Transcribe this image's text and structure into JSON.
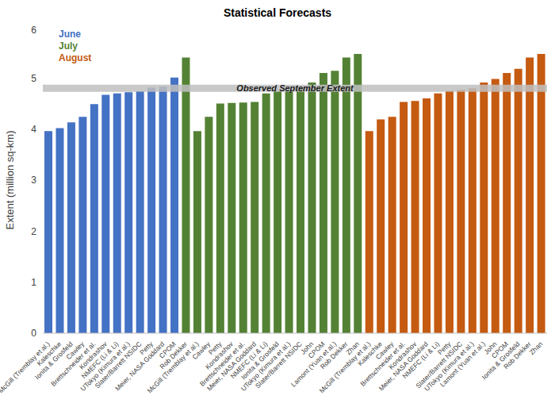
{
  "chart_data": {
    "type": "bar",
    "title": "Statistical Forecasts",
    "y_label": "Extent (million sq-km)",
    "categories": [
      "McGill (Tremblay et al.)",
      "Kaleschke",
      "Ionita & Grosfeld",
      "Cawley",
      "Brettschneider et al.",
      "Kondrashov",
      "NMEFC (Li & Li)",
      "UTokyo (Kimura et al.)",
      "Slater/Barrett NSIDC",
      "Petty",
      "Meier, NASA Goddard",
      "CPOM",
      "Rob Dekker",
      "McGill (Tremblay et al.)",
      "Cawley",
      "Petty",
      "Kondrashov",
      "Brettschneider et al.",
      "Meier, NASA Goddard",
      "NMEFC (Li & Li)",
      "Ionita & Grosfeld",
      "UTokyo (Kimura et al.)",
      "Slater/Barrett NSIDC",
      "John",
      "CPOM",
      "Lamont (Yuan et al.)",
      "Rob Dekker",
      "Zhan",
      "McGill (Tremblay et al.)",
      "Kaleschke",
      "Cawley",
      "Brettschneider et al.",
      "Kondrashov",
      "Meier, NASA Goddard",
      "NMEFC (Li & Li)",
      "Petty",
      "Slater/Barrett NSIDC",
      "UTokyo (Kimura et al.)",
      "Lamont (Yuan et al.)",
      "John",
      "CPOM",
      "Ionita & Grosfeld",
      "Rob Dekker",
      "Zhan"
    ],
    "series": [
      {
        "name": "June",
        "color": "#4472c4",
        "values": [
          3.96,
          4.02,
          4.13,
          4.24,
          4.49,
          4.67,
          4.7,
          4.72,
          4.74,
          4.81,
          4.83,
          5.01,
          null,
          null,
          null,
          null,
          null,
          null,
          null,
          null,
          null,
          null,
          null,
          null,
          null,
          null,
          null,
          null,
          null,
          null,
          null,
          null,
          null,
          null,
          null,
          null,
          null,
          null,
          null,
          null,
          null,
          null,
          null,
          null
        ]
      },
      {
        "name": "July",
        "color": "#548235",
        "values": [
          null,
          null,
          null,
          null,
          null,
          null,
          null,
          null,
          null,
          null,
          null,
          null,
          5.4,
          3.96,
          4.24,
          4.5,
          4.51,
          4.52,
          4.53,
          4.7,
          4.74,
          4.76,
          4.82,
          4.91,
          5.1,
          5.14,
          5.4,
          5.47,
          null,
          null,
          null,
          null,
          null,
          null,
          null,
          null,
          null,
          null,
          null,
          null,
          null,
          null,
          null,
          null
        ]
      },
      {
        "name": "August",
        "color": "#c55a11",
        "values": [
          null,
          null,
          null,
          null,
          null,
          null,
          null,
          null,
          null,
          null,
          null,
          null,
          null,
          null,
          null,
          null,
          null,
          null,
          null,
          null,
          null,
          null,
          null,
          null,
          null,
          null,
          null,
          null,
          3.96,
          4.19,
          4.24,
          4.53,
          4.55,
          4.6,
          4.7,
          4.75,
          4.77,
          4.8,
          4.91,
          4.98,
          5.1,
          5.18,
          5.4,
          5.47
        ]
      }
    ],
    "reference_lines": [
      {
        "label": "Observed September Extent",
        "value": 4.8
      }
    ],
    "ylim": [
      0,
      6
    ],
    "yticks": [
      0,
      1,
      2,
      3,
      4,
      5,
      6
    ],
    "grid": false,
    "legend": "top-left"
  }
}
